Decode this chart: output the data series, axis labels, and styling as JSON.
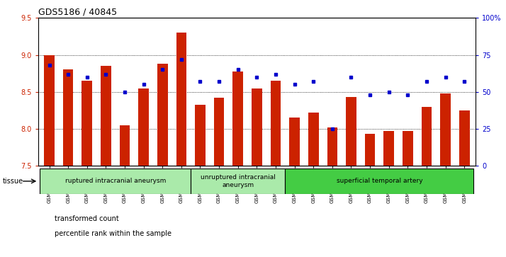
{
  "title": "GDS5186 / 40845",
  "samples": [
    "GSM1306885",
    "GSM1306886",
    "GSM1306887",
    "GSM1306888",
    "GSM1306889",
    "GSM1306890",
    "GSM1306891",
    "GSM1306892",
    "GSM1306893",
    "GSM1306894",
    "GSM1306895",
    "GSM1306896",
    "GSM1306897",
    "GSM1306898",
    "GSM1306899",
    "GSM1306900",
    "GSM1306901",
    "GSM1306902",
    "GSM1306903",
    "GSM1306904",
    "GSM1306905",
    "GSM1306906",
    "GSM1306907"
  ],
  "bar_values": [
    9.0,
    8.8,
    8.65,
    8.85,
    8.05,
    8.55,
    8.88,
    9.3,
    8.33,
    8.42,
    8.78,
    8.55,
    8.65,
    8.15,
    8.22,
    8.02,
    8.43,
    7.93,
    7.97,
    7.97,
    8.3,
    8.48,
    8.25
  ],
  "percentile_values": [
    68,
    62,
    60,
    62,
    50,
    55,
    65,
    72,
    57,
    57,
    65,
    60,
    62,
    55,
    57,
    25,
    60,
    48,
    50,
    48,
    57,
    60,
    57
  ],
  "groups": [
    {
      "label": "ruptured intracranial aneurysm",
      "start": 0,
      "end": 7,
      "color": "#aaeaaa"
    },
    {
      "label": "unruptured intracranial\naneurysm",
      "start": 8,
      "end": 12,
      "color": "#aaeaaa"
    },
    {
      "label": "superficial temporal artery",
      "start": 13,
      "end": 22,
      "color": "#44cc44"
    }
  ],
  "ylim_left": [
    7.5,
    9.5
  ],
  "ylim_right": [
    0,
    100
  ],
  "yticks_left": [
    7.5,
    8.0,
    8.5,
    9.0,
    9.5
  ],
  "yticks_right": [
    0,
    25,
    50,
    75,
    100
  ],
  "ytick_labels_right": [
    "0",
    "25",
    "50",
    "75",
    "100%"
  ],
  "bar_color": "#cc2200",
  "dot_color": "#0000cc",
  "plot_bg_color": "#ffffff",
  "fig_bg_color": "#ffffff",
  "tissue_label": "tissue",
  "legend_bar_label": "transformed count",
  "legend_dot_label": "percentile rank within the sample"
}
